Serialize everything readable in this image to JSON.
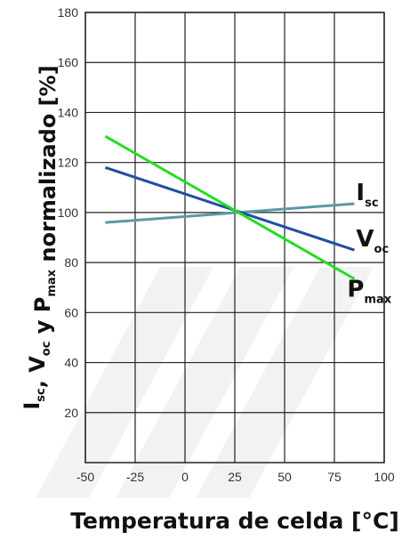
{
  "chart_data": {
    "type": "line",
    "xlabel": "Temperatura de celda [°C]",
    "ylabel": {
      "parts": [
        {
          "text": "I",
          "sub": "sc"
        },
        {
          "text": ", V",
          "sub": "oc"
        },
        {
          "text": " y P",
          "sub": "max"
        },
        {
          "text": " normalizado  [%]",
          "sub": ""
        }
      ]
    },
    "xlim": [
      -50,
      100
    ],
    "ylim": [
      0,
      180
    ],
    "x_ticks": [
      -50,
      -25,
      0,
      25,
      50,
      75,
      100
    ],
    "y_ticks": [
      20,
      40,
      60,
      80,
      100,
      120,
      140,
      160,
      180
    ],
    "grid": true,
    "series": [
      {
        "name": "Isc",
        "label_main": "I",
        "label_sub": "sc",
        "color": "#5a9aa6",
        "x": [
          -40,
          85
        ],
        "y": [
          96,
          103.5
        ]
      },
      {
        "name": "Voc",
        "label_main": "V",
        "label_sub": "oc",
        "color": "#1f4fa0",
        "x": [
          -40,
          85
        ],
        "y": [
          118,
          85
        ]
      },
      {
        "name": "Pmax",
        "label_main": "P",
        "label_sub": "max",
        "color": "#22dd22",
        "x": [
          -40,
          85
        ],
        "y": [
          130.5,
          73.5
        ]
      }
    ]
  }
}
